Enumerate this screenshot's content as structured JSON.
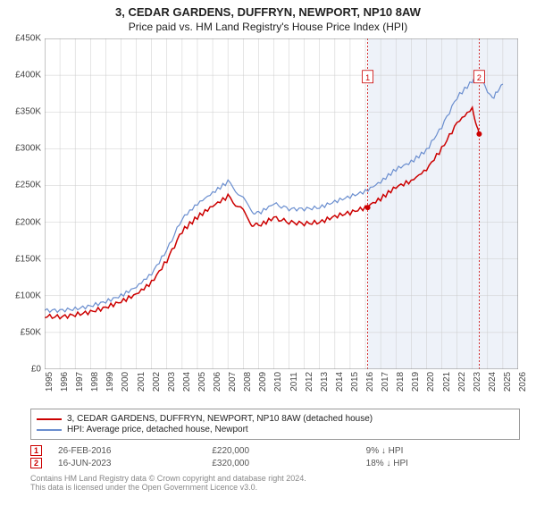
{
  "title": "3, CEDAR GARDENS, DUFFRYN, NEWPORT, NP10 8AW",
  "subtitle": "Price paid vs. HM Land Registry's House Price Index (HPI)",
  "chart": {
    "type": "line",
    "background_color": "#ffffff",
    "grid_color": "#cccccc",
    "border_color": "#888888",
    "shaded_region_color": "#eef2f9",
    "x_min": 1995,
    "x_max": 2026,
    "y_min": 0,
    "y_max": 450000,
    "y_ticks": [
      0,
      50000,
      100000,
      150000,
      200000,
      250000,
      300000,
      350000,
      400000,
      450000
    ],
    "y_tick_labels": [
      "£0",
      "£50K",
      "£100K",
      "£150K",
      "£200K",
      "£250K",
      "£300K",
      "£350K",
      "£400K",
      "£450K"
    ],
    "x_ticks": [
      1995,
      1996,
      1997,
      1998,
      1999,
      2000,
      2001,
      2002,
      2003,
      2004,
      2005,
      2006,
      2007,
      2008,
      2009,
      2010,
      2011,
      2012,
      2013,
      2014,
      2015,
      2016,
      2017,
      2018,
      2019,
      2020,
      2021,
      2022,
      2023,
      2024,
      2025,
      2026
    ],
    "shaded_from_year": 2016.15,
    "series": [
      {
        "name": "HPI: Average price, detached house, Newport",
        "color": "#6a8ecf",
        "points": [
          [
            1995,
            80000
          ],
          [
            1996,
            80000
          ],
          [
            1997,
            82000
          ],
          [
            1998,
            86000
          ],
          [
            1999,
            92000
          ],
          [
            2000,
            100000
          ],
          [
            2001,
            112000
          ],
          [
            2002,
            130000
          ],
          [
            2003,
            162000
          ],
          [
            2004,
            205000
          ],
          [
            2005,
            225000
          ],
          [
            2006,
            240000
          ],
          [
            2007,
            255000
          ],
          [
            2008,
            232000
          ],
          [
            2008.5,
            215000
          ],
          [
            2009,
            212000
          ],
          [
            2010,
            225000
          ],
          [
            2011,
            218000
          ],
          [
            2012,
            218000
          ],
          [
            2013,
            220000
          ],
          [
            2014,
            228000
          ],
          [
            2015,
            235000
          ],
          [
            2016,
            242000
          ],
          [
            2017,
            255000
          ],
          [
            2018,
            272000
          ],
          [
            2019,
            282000
          ],
          [
            2020,
            298000
          ],
          [
            2021,
            330000
          ],
          [
            2022,
            370000
          ],
          [
            2023,
            392000
          ],
          [
            2023.5,
            400000
          ],
          [
            2024,
            375000
          ],
          [
            2024.3,
            368000
          ],
          [
            2025,
            388000
          ]
        ]
      },
      {
        "name": "3, CEDAR GARDENS, DUFFRYN, NEWPORT, NP10 8AW (detached house)",
        "color": "#cc0000",
        "points": [
          [
            1995,
            72000
          ],
          [
            1996,
            71000
          ],
          [
            1997,
            74000
          ],
          [
            1998,
            78000
          ],
          [
            1999,
            84000
          ],
          [
            2000,
            92000
          ],
          [
            2001,
            102000
          ],
          [
            2002,
            118000
          ],
          [
            2003,
            148000
          ],
          [
            2004,
            188000
          ],
          [
            2005,
            207000
          ],
          [
            2006,
            222000
          ],
          [
            2007,
            235000
          ],
          [
            2008,
            215000
          ],
          [
            2008.5,
            198000
          ],
          [
            2009,
            195000
          ],
          [
            2010,
            206000
          ],
          [
            2011,
            200000
          ],
          [
            2012,
            198000
          ],
          [
            2013,
            200000
          ],
          [
            2014,
            208000
          ],
          [
            2015,
            213000
          ],
          [
            2016,
            220000
          ],
          [
            2017,
            232000
          ],
          [
            2018,
            248000
          ],
          [
            2019,
            256000
          ],
          [
            2020,
            272000
          ],
          [
            2021,
            300000
          ],
          [
            2022,
            335000
          ],
          [
            2023,
            355000
          ],
          [
            2023.45,
            320000
          ]
        ]
      }
    ],
    "markers": [
      {
        "id": "1",
        "year": 2016.15,
        "y": 398000,
        "point_y": 220000
      },
      {
        "id": "2",
        "year": 2023.45,
        "y": 398000,
        "point_y": 320000
      }
    ]
  },
  "legend": {
    "items": [
      {
        "label": "3, CEDAR GARDENS, DUFFRYN, NEWPORT, NP10 8AW (detached house)",
        "color": "#cc0000"
      },
      {
        "label": "HPI: Average price, detached house, Newport",
        "color": "#6a8ecf"
      }
    ]
  },
  "marker_table": [
    {
      "badge": "1",
      "date": "26-FEB-2016",
      "price": "£220,000",
      "diff": "9% ↓ HPI"
    },
    {
      "badge": "2",
      "date": "16-JUN-2023",
      "price": "£320,000",
      "diff": "18% ↓ HPI"
    }
  ],
  "footnote_line1": "Contains HM Land Registry data © Crown copyright and database right 2024.",
  "footnote_line2": "This data is licensed under the Open Government Licence v3.0.",
  "fonts": {
    "title_size": 13,
    "subtitle_size": 12,
    "axis_size": 10,
    "legend_size": 10,
    "footnote_size": 9
  }
}
